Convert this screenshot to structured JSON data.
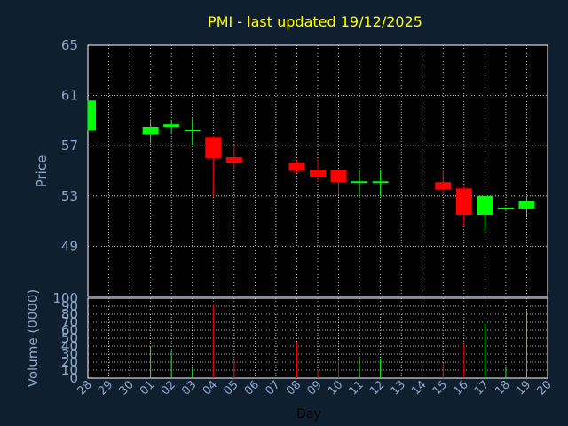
{
  "chart_data": {
    "type": "candlestick",
    "title": "PMI - last updated 19/12/2025",
    "xlabel": "Day",
    "price_ylabel": "Price",
    "volume_ylabel": "Volume (0000)",
    "price_yticks": [
      49,
      53,
      57,
      61,
      65
    ],
    "price_ylim": [
      45,
      65
    ],
    "volume_yticks": [
      0,
      10,
      20,
      30,
      40,
      50,
      60,
      70,
      80,
      90,
      100
    ],
    "volume_ylim": [
      0,
      100
    ],
    "grid": true,
    "up_color": "#00ff00",
    "down_color": "#ff0000",
    "days": [
      "28",
      "29",
      "30",
      "01",
      "02",
      "03",
      "04",
      "05",
      "06",
      "07",
      "08",
      "09",
      "10",
      "11",
      "12",
      "13",
      "14",
      "15",
      "16",
      "17",
      "18",
      "19",
      "20"
    ],
    "candles": [
      {
        "day": "28",
        "open": 58.2,
        "close": 60.6,
        "high": 60.6,
        "low": 58.2,
        "volume": 0
      },
      {
        "day": "01",
        "open": 57.9,
        "close": 58.5,
        "high": 59.1,
        "low": 57.2,
        "volume": 40
      },
      {
        "day": "02",
        "open": 58.5,
        "close": 58.7,
        "high": 59.1,
        "low": 58.0,
        "volume": 35
      },
      {
        "day": "03",
        "open": 58.1,
        "close": 58.2,
        "high": 59.2,
        "low": 57.1,
        "volume": 12
      },
      {
        "day": "04",
        "open": 57.7,
        "close": 56.0,
        "high": 57.8,
        "low": 53.0,
        "volume": 92
      },
      {
        "day": "05",
        "open": 56.1,
        "close": 55.6,
        "high": 57.1,
        "low": 55.2,
        "volume": 22
      },
      {
        "day": "08",
        "open": 55.6,
        "close": 55.0,
        "high": 55.9,
        "low": 54.8,
        "volume": 45
      },
      {
        "day": "09",
        "open": 55.1,
        "close": 54.5,
        "high": 56.0,
        "low": 54.1,
        "volume": 10
      },
      {
        "day": "10",
        "open": 55.1,
        "close": 54.1,
        "high": 55.2,
        "low": 53.1,
        "volume": 22
      },
      {
        "day": "11",
        "open": 54.0,
        "close": 54.1,
        "high": 55.1,
        "low": 53.0,
        "volume": 25
      },
      {
        "day": "12",
        "open": 54.1,
        "close": 54.1,
        "high": 55.1,
        "low": 53.0,
        "volume": 25
      },
      {
        "day": "15",
        "open": 54.1,
        "close": 53.5,
        "high": 55.1,
        "low": 53.1,
        "volume": 19
      },
      {
        "day": "16",
        "open": 53.6,
        "close": 51.5,
        "high": 53.8,
        "low": 50.6,
        "volume": 42
      },
      {
        "day": "17",
        "open": 51.5,
        "close": 53.0,
        "high": 53.0,
        "low": 50.2,
        "volume": 70
      },
      {
        "day": "18",
        "open": 51.9,
        "close": 52.0,
        "high": 52.1,
        "low": 51.8,
        "volume": 14
      },
      {
        "day": "19",
        "open": 52.0,
        "close": 52.6,
        "high": 53.0,
        "low": 51.4,
        "volume": 85
      }
    ]
  }
}
